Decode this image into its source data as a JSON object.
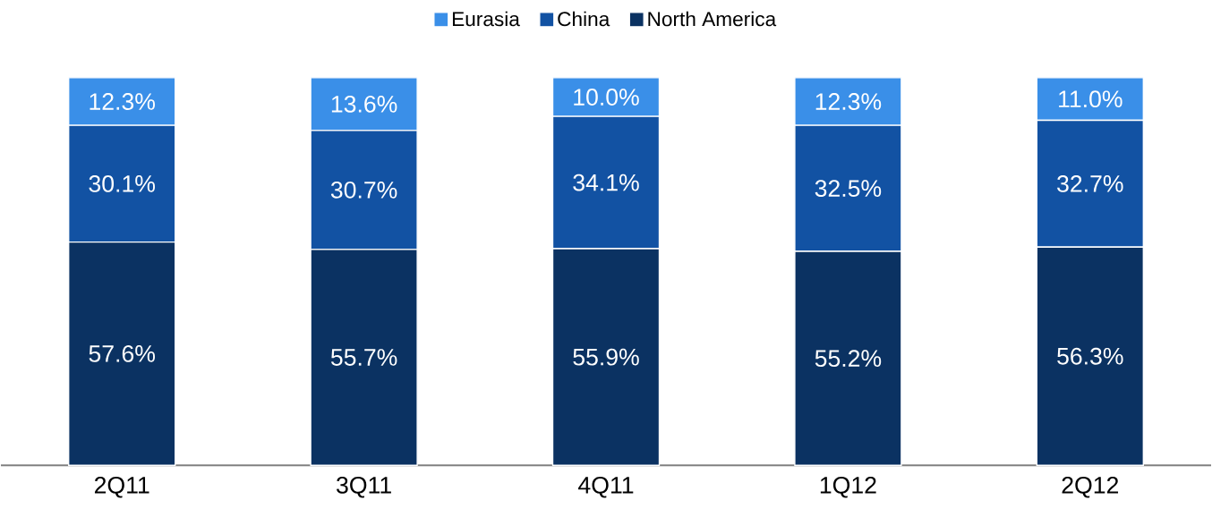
{
  "chart_data": {
    "type": "bar",
    "stacked": true,
    "categories": [
      "2Q11",
      "3Q11",
      "4Q11",
      "1Q12",
      "2Q12"
    ],
    "tick_labels": "x",
    "legend": "top",
    "series": [
      {
        "name": "North America",
        "color": "#0b3262",
        "values": [
          57.6,
          55.7,
          55.9,
          55.2,
          56.3
        ],
        "value_labels": [
          "57.6%",
          "55.7%",
          "55.9%",
          "55.2%",
          "56.3%"
        ]
      },
      {
        "name": "China",
        "color": "#1252a3",
        "values": [
          30.1,
          30.7,
          34.1,
          32.5,
          32.7
        ],
        "value_labels": [
          "30.1%",
          "30.7%",
          "34.1%",
          "32.5%",
          "32.7%"
        ]
      },
      {
        "name": "Eurasia",
        "color": "#3a8fe8",
        "values": [
          12.3,
          13.6,
          10.0,
          12.3,
          11.0
        ],
        "value_labels": [
          "12.3%",
          "13.6%",
          "10.0%",
          "12.3%",
          "11.0%"
        ]
      }
    ]
  }
}
